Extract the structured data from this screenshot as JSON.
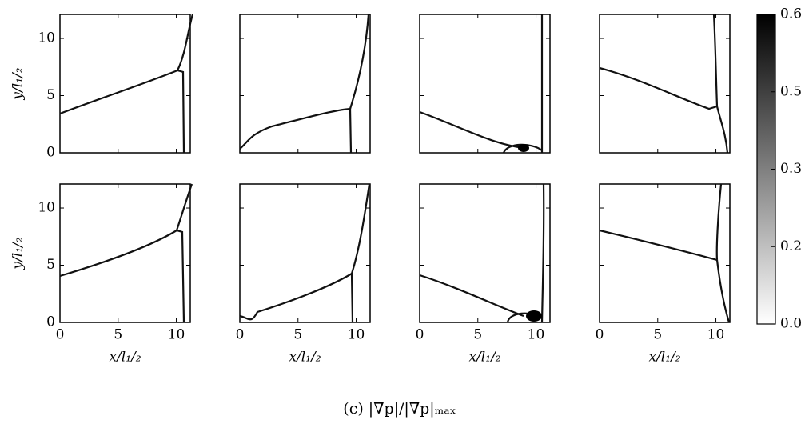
{
  "chart_data": {
    "type": "heatmap",
    "caption": "(c) |∇p|/|∇p|ₘₐₓ",
    "xlabel": "x/l₁/₂",
    "ylabel": "y/l₁/₂",
    "xlim": [
      0,
      11.2
    ],
    "ylim": [
      0,
      12.1
    ],
    "xticks": [
      0,
      5,
      10
    ],
    "yticks": [
      0,
      5,
      10
    ],
    "cmap": [
      "#ffffff",
      "#000000"
    ],
    "colorbar": {
      "lim": [
        0,
        0.6
      ],
      "ticks": [
        {
          "value": 0,
          "label": "0.0"
        },
        {
          "value": 0.15,
          "label": "0.2"
        },
        0.3,
        {
          "value": 0.45,
          "label": "0.5"
        },
        0.6
      ]
    }
  }
}
